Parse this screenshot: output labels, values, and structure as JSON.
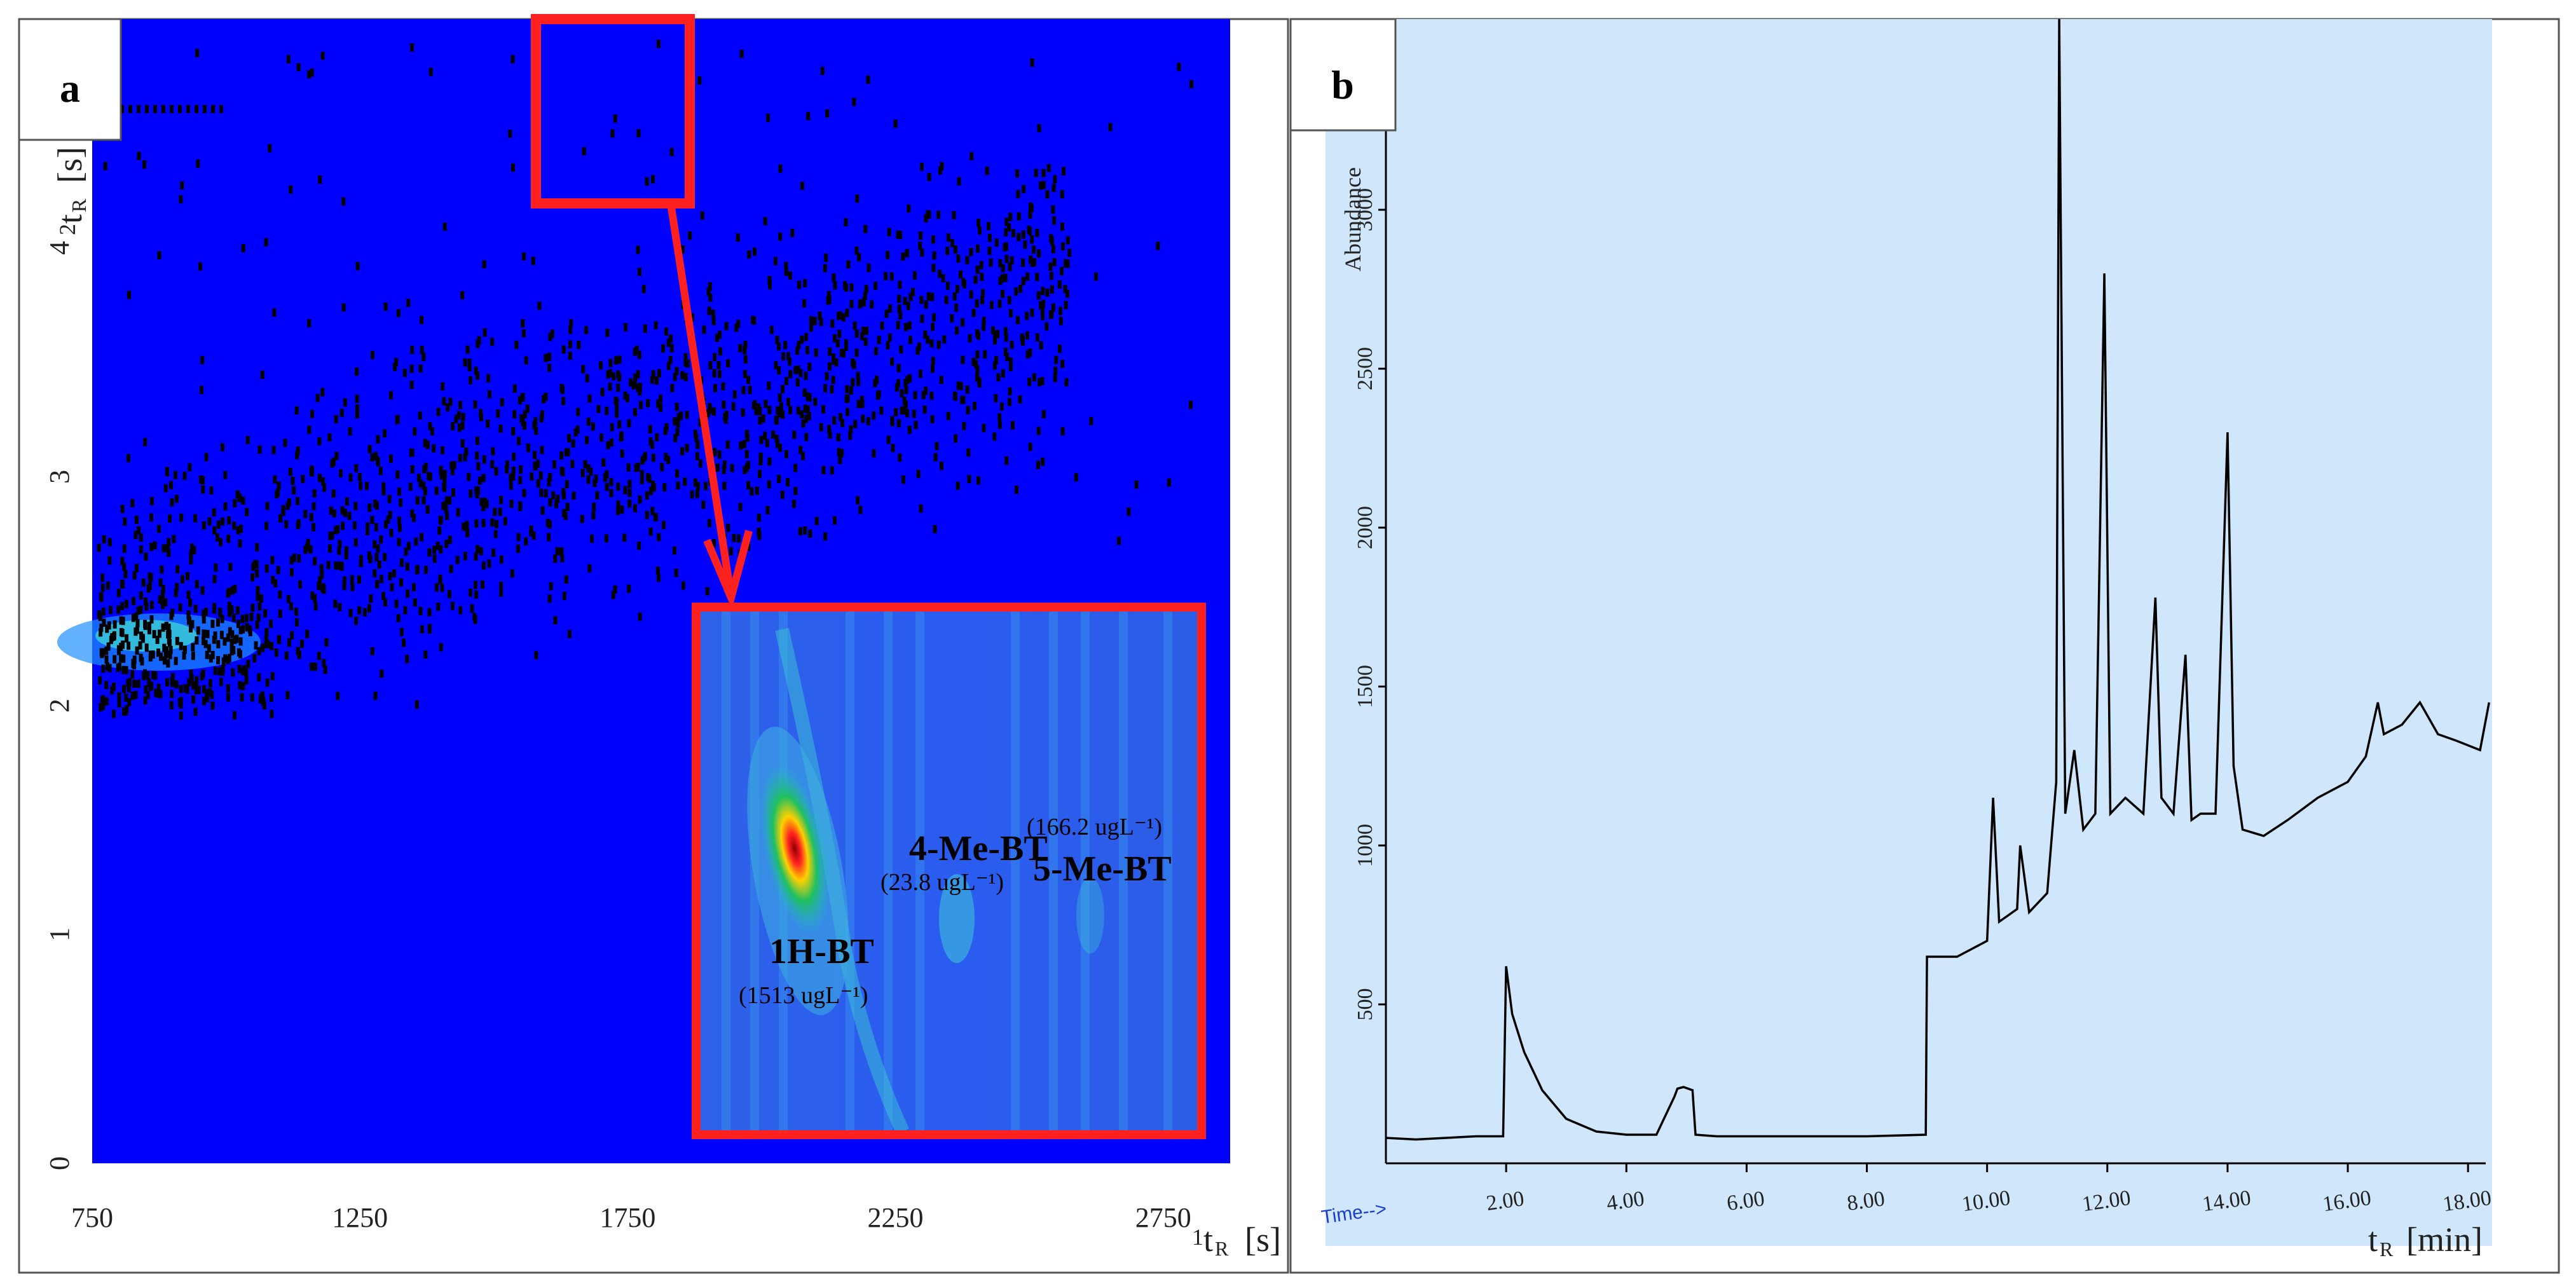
{
  "panel_a": {
    "letter": "a",
    "x_unit": "[s]",
    "y_unit": "[s]",
    "inset": {
      "annotations": [
        {
          "name": "1H-BT",
          "conc": "(1513 ugL⁻¹)"
        },
        {
          "name": "4-Me-BT",
          "conc": "(23.8 ugL⁻¹)"
        },
        {
          "name": "5-Me-BT",
          "conc": "(166.2 ugL⁻¹)"
        }
      ]
    }
  },
  "panel_b": {
    "letter": "b",
    "time_label": "Time-->",
    "x_unit": "[min]"
  },
  "colors": {
    "plot_bg_a": "#0000ff",
    "plot_bg_b": "#cfe6fb",
    "highlight": "#ff2020",
    "trace": "#000000"
  },
  "chart_data": [
    {
      "type": "heatmap",
      "title": "",
      "xlabel": "¹t_R [s]",
      "ylabel": "²t_R [s]",
      "xlim": [
        750,
        2875
      ],
      "ylim": [
        0,
        5
      ],
      "x_ticks": [
        "750",
        "1250",
        "1750",
        "2250",
        "2750"
      ],
      "y_ticks": [
        "0",
        "1",
        "2",
        "3",
        "4"
      ],
      "grid": false,
      "peaks": [
        {
          "label": "1H-BT",
          "concentration_ugL": 1513
        },
        {
          "label": "4-Me-BT",
          "concentration_ugL": 23.8
        },
        {
          "label": "5-Me-BT",
          "concentration_ugL": 166.2
        }
      ]
    },
    {
      "type": "line",
      "title": "",
      "xlabel": "t_R [min]",
      "ylabel": "Abundance",
      "xlim": [
        0,
        18.4
      ],
      "ylim": [
        0,
        3600
      ],
      "x_ticks": [
        "2.00",
        "4.00",
        "6.00",
        "8.00",
        "10.00",
        "12.00",
        "14.00",
        "16.00",
        "18.00"
      ],
      "y_ticks": [
        "500",
        "1000",
        "1500",
        "2000",
        "2500",
        "3000"
      ],
      "grid": false,
      "series": [
        {
          "x": [
            0.0,
            0.5,
            1.0,
            1.5,
            1.95,
            2.0,
            2.1,
            2.3,
            2.6,
            3.0,
            3.5,
            4.0,
            4.5,
            4.8,
            4.85,
            4.95,
            5.1,
            5.15,
            5.5,
            6.0,
            7.0,
            8.0,
            8.98,
            9.0,
            9.5,
            10.0,
            10.1,
            10.2,
            10.5,
            10.55,
            10.7,
            11.0,
            11.15,
            11.2,
            11.3,
            11.45,
            11.6,
            11.8,
            11.95,
            12.05,
            12.3,
            12.6,
            12.8,
            12.9,
            13.1,
            13.3,
            13.4,
            13.55,
            13.8,
            14.0,
            14.1,
            14.25,
            14.6,
            15.0,
            15.5,
            16.0,
            16.3,
            16.5,
            16.6,
            16.9,
            17.2,
            17.5,
            17.8,
            18.2,
            18.35
          ],
          "y": [
            80,
            75,
            80,
            85,
            85,
            620,
            470,
            350,
            230,
            140,
            100,
            90,
            90,
            210,
            235,
            240,
            230,
            90,
            85,
            85,
            85,
            85,
            90,
            650,
            650,
            700,
            1150,
            760,
            800,
            1000,
            790,
            850,
            1200,
            3600,
            1100,
            1300,
            1050,
            1100,
            2800,
            1100,
            1150,
            1100,
            1780,
            1150,
            1100,
            1600,
            1080,
            1100,
            1100,
            2300,
            1250,
            1050,
            1030,
            1080,
            1150,
            1200,
            1280,
            1450,
            1350,
            1380,
            1450,
            1350,
            1330,
            1300,
            1450
          ]
        }
      ]
    }
  ]
}
